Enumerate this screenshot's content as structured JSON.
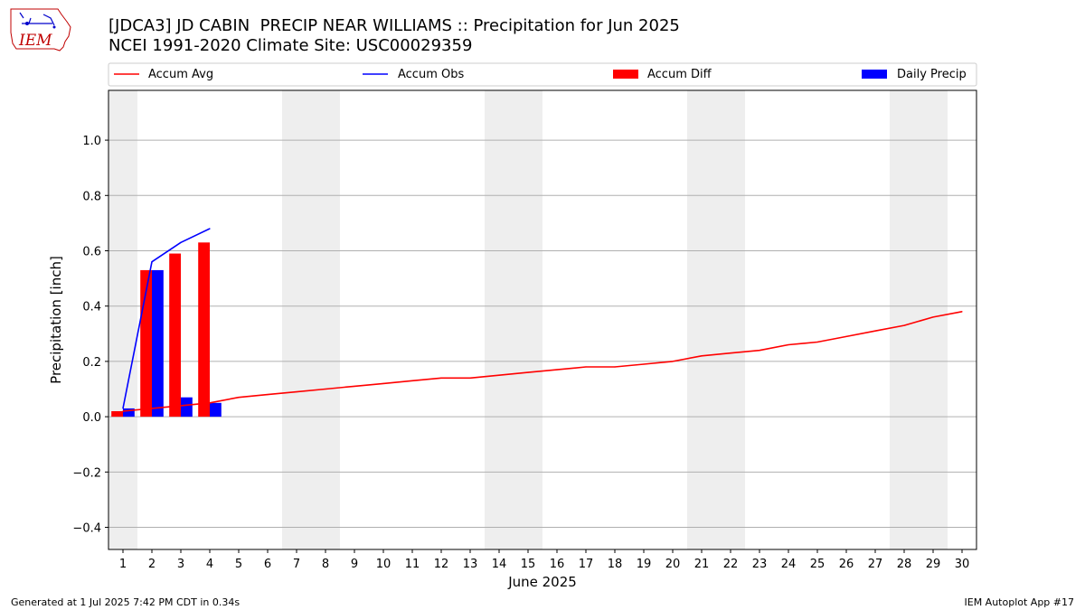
{
  "header": {
    "title_line1": "[JDCA3] JD CABIN  PRECIP NEAR WILLIAMS :: Precipitation for Jun 2025",
    "title_line2": "NCEI 1991-2020 Climate Site: USC00029359",
    "logo_text": "IEM"
  },
  "footer": {
    "left": "Generated at 1 Jul 2025 7:42 PM CDT in 0.34s",
    "right": "IEM Autoplot App #17"
  },
  "colors": {
    "accum_avg": "#ff0000",
    "accum_obs": "#0000ff",
    "accum_diff": "#ff0000",
    "daily_precip": "#0000ff",
    "weekend_shade": "#eeeeee",
    "grid": "#b0b0b0"
  },
  "chart_data": {
    "type": "bar",
    "xlabel": "June 2025",
    "ylabel": "Precipitation [inch]",
    "xlim": [
      0.5,
      30.5
    ],
    "ylim": [
      -0.48,
      1.18
    ],
    "x_ticks": [
      1,
      2,
      3,
      4,
      5,
      6,
      7,
      8,
      9,
      10,
      11,
      12,
      13,
      14,
      15,
      16,
      17,
      18,
      19,
      20,
      21,
      22,
      23,
      24,
      25,
      26,
      27,
      28,
      29,
      30
    ],
    "y_ticks": [
      -0.4,
      -0.2,
      0.0,
      0.2,
      0.4,
      0.6,
      0.8,
      1.0
    ],
    "y_tick_labels": [
      "−0.4",
      "−0.2",
      "0.0",
      "0.2",
      "0.4",
      "0.6",
      "0.8",
      "1.0"
    ],
    "grid": "horizontal",
    "legend_position": "top",
    "weekend_days": [
      1,
      7,
      8,
      14,
      15,
      21,
      22,
      28,
      29
    ],
    "series": [
      {
        "name": "Accum Avg",
        "type": "line",
        "x": [
          1,
          2,
          3,
          4,
          5,
          6,
          7,
          8,
          9,
          10,
          11,
          12,
          13,
          14,
          15,
          16,
          17,
          18,
          19,
          20,
          21,
          22,
          23,
          24,
          25,
          26,
          27,
          28,
          29,
          30
        ],
        "values": [
          0.02,
          0.03,
          0.04,
          0.05,
          0.07,
          0.08,
          0.09,
          0.1,
          0.11,
          0.12,
          0.13,
          0.14,
          0.14,
          0.15,
          0.16,
          0.17,
          0.18,
          0.18,
          0.19,
          0.2,
          0.22,
          0.23,
          0.24,
          0.26,
          0.27,
          0.29,
          0.31,
          0.33,
          0.36,
          0.38
        ]
      },
      {
        "name": "Accum Obs",
        "type": "line",
        "x": [
          1,
          2,
          3,
          4
        ],
        "values": [
          0.03,
          0.56,
          0.63,
          0.68
        ]
      },
      {
        "name": "Accum Diff",
        "type": "bar",
        "x": [
          1,
          2,
          3,
          4
        ],
        "values": [
          0.02,
          0.53,
          0.59,
          0.63
        ]
      },
      {
        "name": "Daily Precip",
        "type": "bar",
        "x": [
          1,
          2,
          3,
          4
        ],
        "values": [
          0.03,
          0.53,
          0.07,
          0.05
        ]
      }
    ]
  }
}
